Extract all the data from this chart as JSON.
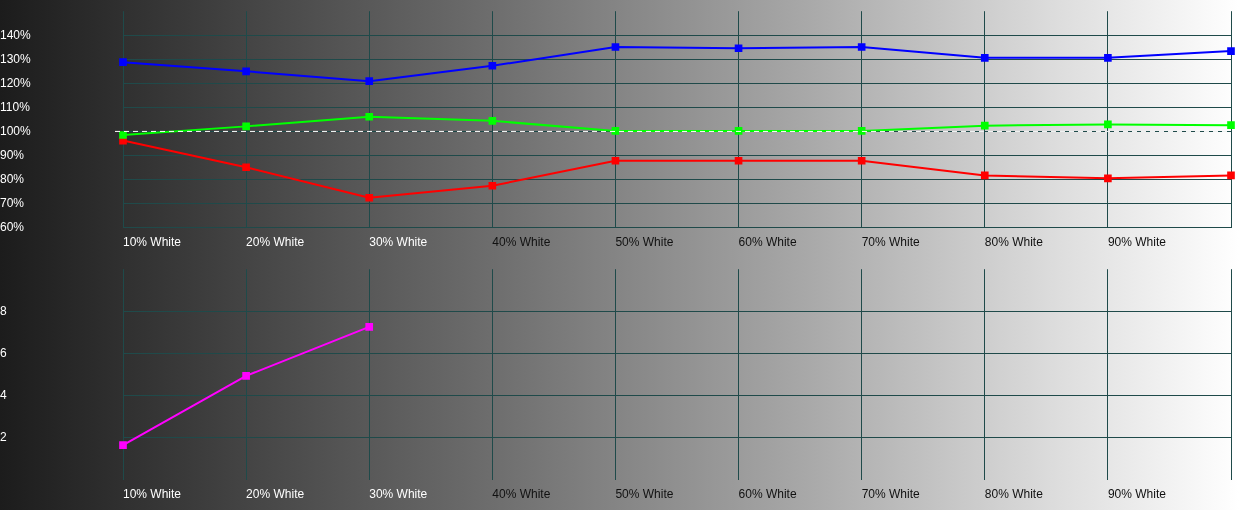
{
  "chart_data": [
    {
      "type": "line",
      "categories": [
        "10% White",
        "20% White",
        "30% White",
        "40% White",
        "50% White",
        "60% White",
        "70% White",
        "80% White",
        "90% White",
        null
      ],
      "series": [
        {
          "color": "#0000ff",
          "values": [
            128.8,
            125,
            120.9,
            127.3,
            135.1,
            134.6,
            135.1,
            130.6,
            130.6,
            133.4
          ]
        },
        {
          "color": "#00ff00",
          "values": [
            98.5,
            102.1,
            106.1,
            104.4,
            100.2,
            100.2,
            100.2,
            102.4,
            102.9,
            102.6
          ]
        },
        {
          "color": "#ff0000",
          "values": [
            96.2,
            85.1,
            72.4,
            77.4,
            87.8,
            87.8,
            87.8,
            81.7,
            80.5,
            81.7
          ]
        }
      ],
      "ylim": [
        60,
        150
      ],
      "yticks": [
        {
          "value": 60,
          "label": "60%"
        },
        {
          "value": 70,
          "label": "70%"
        },
        {
          "value": 80,
          "label": "80%"
        },
        {
          "value": 90,
          "label": "90%"
        },
        {
          "value": 100,
          "label": "100%"
        },
        {
          "value": 110,
          "label": "110%"
        },
        {
          "value": 120,
          "label": "120%"
        },
        {
          "value": 130,
          "label": "130%"
        },
        {
          "value": 140,
          "label": "140%"
        }
      ],
      "ref_lines": [
        {
          "axis": "y",
          "value": 100,
          "color": "#ffffff",
          "line_style": "dashed"
        }
      ],
      "grid": true,
      "marker": "square",
      "line_style": "solid"
    },
    {
      "type": "line",
      "categories": [
        "10% White",
        "20% White",
        "30% White",
        "40% White",
        "50% White",
        "60% White",
        "70% White",
        "80% White",
        "90% White",
        null
      ],
      "series": [
        {
          "color": "#ff00ff",
          "values": [
            1.64,
            4.93,
            7.26,
            null,
            null,
            null,
            null,
            null,
            null,
            null
          ]
        }
      ],
      "ylim": [
        0,
        10
      ],
      "yticks": [
        2,
        4,
        6,
        8
      ],
      "grid": true,
      "marker": "square",
      "line_style": "solid"
    }
  ]
}
